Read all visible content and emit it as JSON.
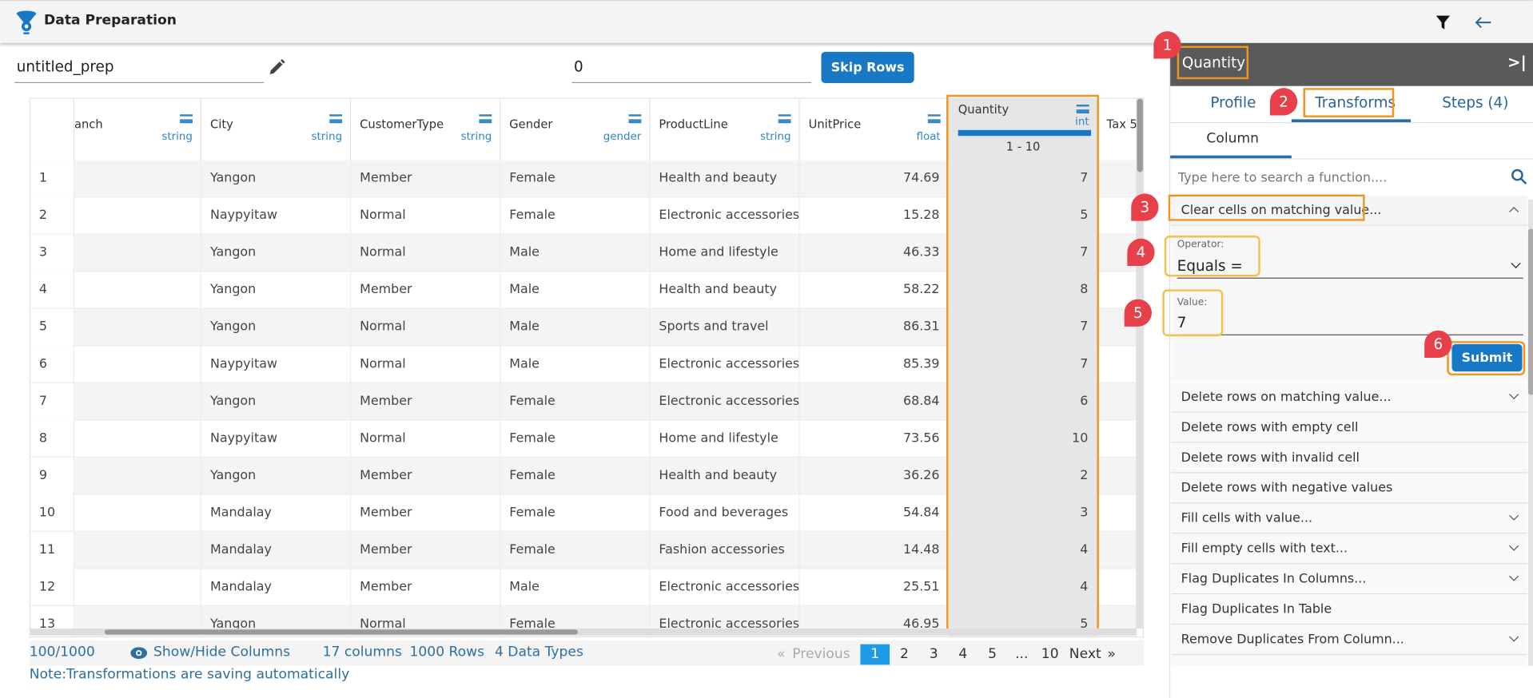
{
  "header": {
    "title": "Data Preparation",
    "filter_icon": "filter-icon",
    "back_icon": "arrow-left-icon"
  },
  "toolbar": {
    "prep_name": "untitled_prep",
    "skip_value": "0",
    "skip_rows_label": "Skip Rows"
  },
  "table": {
    "columns": [
      {
        "name": "anch",
        "type": "string"
      },
      {
        "name": "City",
        "type": "string"
      },
      {
        "name": "CustomerType",
        "type": "string"
      },
      {
        "name": "Gender",
        "type": "gender"
      },
      {
        "name": "ProductLine",
        "type": "string"
      },
      {
        "name": "UnitPrice",
        "type": "float"
      },
      {
        "name": "Quantity",
        "type": "int",
        "range": "1 - 10"
      },
      {
        "name": "Tax 5",
        "type": ""
      }
    ],
    "rows": [
      [
        "1",
        "Yangon",
        "Member",
        "Female",
        "Health and beauty",
        "74.69",
        "7"
      ],
      [
        "2",
        "Naypyitaw",
        "Normal",
        "Female",
        "Electronic accessories",
        "15.28",
        "5"
      ],
      [
        "3",
        "Yangon",
        "Normal",
        "Male",
        "Home and lifestyle",
        "46.33",
        "7"
      ],
      [
        "4",
        "Yangon",
        "Member",
        "Male",
        "Health and beauty",
        "58.22",
        "8"
      ],
      [
        "5",
        "Yangon",
        "Normal",
        "Male",
        "Sports and travel",
        "86.31",
        "7"
      ],
      [
        "6",
        "Naypyitaw",
        "Normal",
        "Male",
        "Electronic accessories",
        "85.39",
        "7"
      ],
      [
        "7",
        "Yangon",
        "Member",
        "Female",
        "Electronic accessories",
        "68.84",
        "6"
      ],
      [
        "8",
        "Naypyitaw",
        "Normal",
        "Female",
        "Home and lifestyle",
        "73.56",
        "10"
      ],
      [
        "9",
        "Yangon",
        "Member",
        "Female",
        "Health and beauty",
        "36.26",
        "2"
      ],
      [
        "10",
        "Mandalay",
        "Member",
        "Female",
        "Food and beverages",
        "54.84",
        "3"
      ],
      [
        "11",
        "Mandalay",
        "Member",
        "Female",
        "Fashion accessories",
        "14.48",
        "4"
      ],
      [
        "12",
        "Mandalay",
        "Member",
        "Male",
        "Electronic accessories",
        "25.51",
        "4"
      ],
      [
        "13",
        "Yangon",
        "Normal",
        "Female",
        "Electronic accessories",
        "46.95",
        "5"
      ]
    ]
  },
  "footer": {
    "count": "100/1000",
    "show_hide": "Show/Hide Columns",
    "columns": "17 columns",
    "rows": "1000 Rows",
    "types": "4 Data Types",
    "note": "Note:Transformations are saving automatically",
    "pagination": {
      "previous": "Previous",
      "pages": [
        "1",
        "2",
        "3",
        "4",
        "5",
        "...",
        "10"
      ],
      "current": "1",
      "next": "Next"
    }
  },
  "panel": {
    "column_name": "Quantity",
    "tabs": [
      "Profile",
      "Transforms",
      "Steps (4)"
    ],
    "active_tab": "Transforms",
    "subtab": "Column",
    "search_placeholder": "Type here to search a function....",
    "expanded": {
      "label": "Clear cells on matching value...",
      "operator_label": "Operator:",
      "operator_value": "Equals =",
      "value_label": "Value:",
      "value": "7",
      "submit": "Submit"
    },
    "functions": [
      {
        "label": "Delete rows on matching value...",
        "chevron": true
      },
      {
        "label": "Delete rows with empty cell",
        "chevron": false
      },
      {
        "label": "Delete rows with invalid cell",
        "chevron": false
      },
      {
        "label": "Delete rows with negative values",
        "chevron": false
      },
      {
        "label": "Fill cells with value...",
        "chevron": true
      },
      {
        "label": "Fill empty cells with text...",
        "chevron": true
      },
      {
        "label": "Flag Duplicates In Columns...",
        "chevron": true
      },
      {
        "label": "Flag Duplicates In Table",
        "chevron": false
      },
      {
        "label": "Remove Duplicates From Column...",
        "chevron": true
      }
    ]
  },
  "callouts": [
    "1",
    "2",
    "3",
    "4",
    "5",
    "6"
  ],
  "colors": {
    "accent": "#1778c6",
    "highlight": "#f0961f",
    "callout": "#e8404a",
    "panel_header": "#5a5a5a"
  }
}
